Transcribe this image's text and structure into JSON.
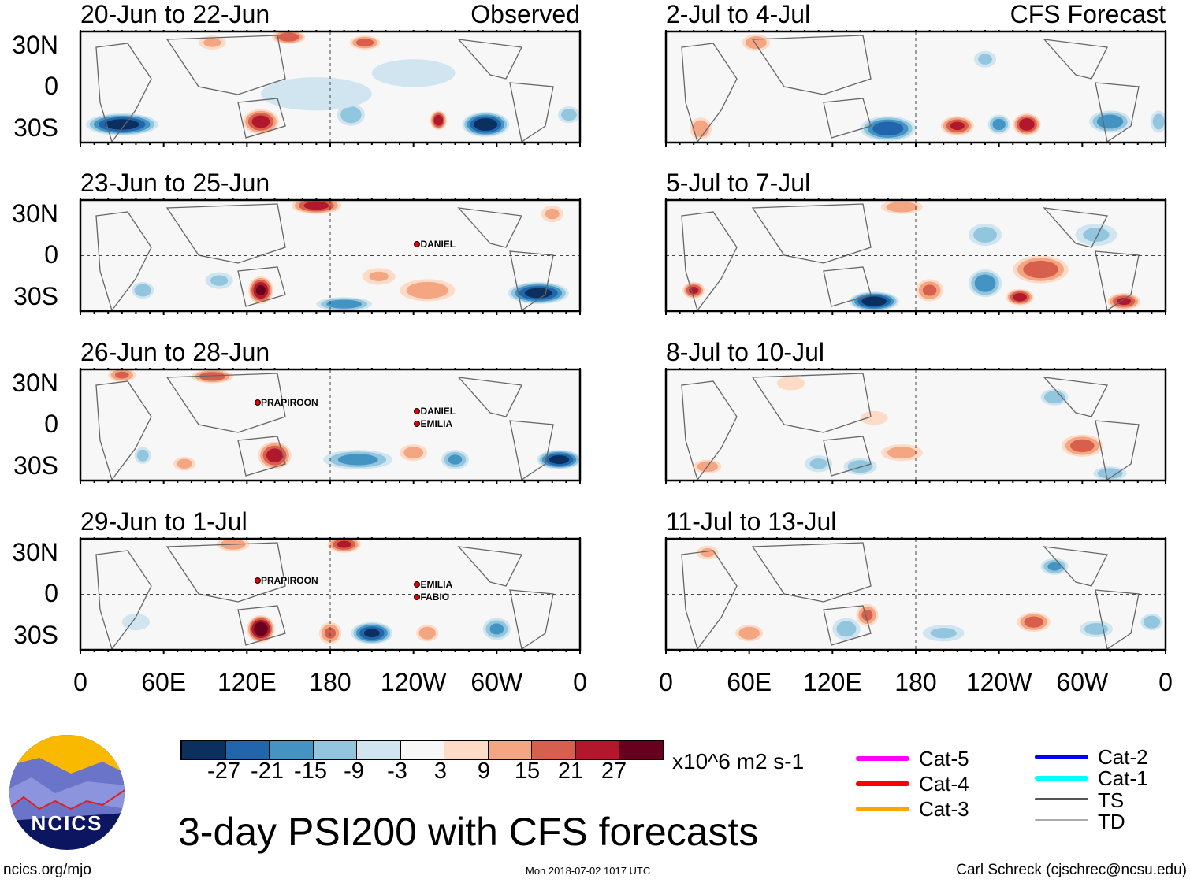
{
  "header": {
    "left_label": "Observed",
    "right_label": "CFS Forecast"
  },
  "panels_left": [
    {
      "title": "20-Jun to 22-Jun",
      "storms": []
    },
    {
      "title": "23-Jun to 25-Jun",
      "storms": [
        {
          "name": "DANIEL"
        }
      ]
    },
    {
      "title": "26-Jun to 28-Jun",
      "storms": [
        {
          "name": "PRAPIROON"
        },
        {
          "name": "DANIEL"
        },
        {
          "name": "EMILIA"
        }
      ]
    },
    {
      "title": "29-Jun to 1-Jul",
      "storms": [
        {
          "name": "PRAPIROON"
        },
        {
          "name": "EMILIA"
        },
        {
          "name": "FABIO"
        }
      ]
    }
  ],
  "panels_right": [
    {
      "title": "2-Jul to 4-Jul"
    },
    {
      "title": "5-Jul to 7-Jul"
    },
    {
      "title": "8-Jul to 10-Jul"
    },
    {
      "title": "11-Jul to 13-Jul"
    }
  ],
  "lat_labels": [
    "30N",
    "0",
    "30S"
  ],
  "lon_labels": [
    "0",
    "60E",
    "120E",
    "180",
    "120W",
    "60W",
    "0"
  ],
  "colorbar": {
    "colors": [
      "#0b2f5e",
      "#2166ac",
      "#4393c3",
      "#92c5de",
      "#d1e5f0",
      "#f7f7f7",
      "#fddbc7",
      "#f4a582",
      "#d6604d",
      "#b2182b",
      "#67001f"
    ],
    "labels": [
      "-27",
      "-21",
      "-15",
      "-9",
      "-3",
      "3",
      "9",
      "15",
      "21",
      "27"
    ],
    "units": "x10^6 m2 s-1"
  },
  "legend": [
    {
      "label": "Cat-5",
      "color": "#ff00ff"
    },
    {
      "label": "Cat-4",
      "color": "#ff0000"
    },
    {
      "label": "Cat-3",
      "color": "#ffa500"
    },
    {
      "label": "Cat-2",
      "color": "#0000ff"
    },
    {
      "label": "Cat-1",
      "color": "#00ffff"
    },
    {
      "label": "TS",
      "color": "#555555"
    },
    {
      "label": "TD",
      "color": "#aaaaaa"
    }
  ],
  "logo_text": "NCICS",
  "main_title": "3-day PSI200 with CFS forecasts",
  "footer": {
    "url": "ncics.org/mjo",
    "timestamp": "Mon 2018-07-02 1017 UTC",
    "author": "Carl Schreck (cjschrec@ncsu.edu)"
  }
}
